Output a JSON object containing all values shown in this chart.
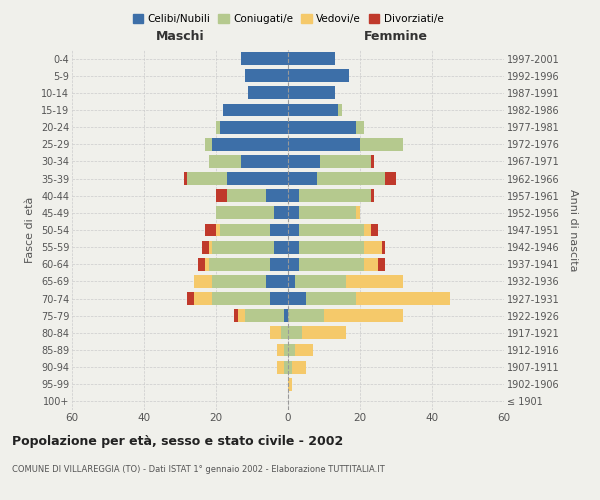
{
  "age_groups": [
    "100+",
    "95-99",
    "90-94",
    "85-89",
    "80-84",
    "75-79",
    "70-74",
    "65-69",
    "60-64",
    "55-59",
    "50-54",
    "45-49",
    "40-44",
    "35-39",
    "30-34",
    "25-29",
    "20-24",
    "15-19",
    "10-14",
    "5-9",
    "0-4"
  ],
  "birth_years": [
    "≤ 1901",
    "1902-1906",
    "1907-1911",
    "1912-1916",
    "1917-1921",
    "1922-1926",
    "1927-1931",
    "1932-1936",
    "1937-1941",
    "1942-1946",
    "1947-1951",
    "1952-1956",
    "1957-1961",
    "1962-1966",
    "1967-1971",
    "1972-1976",
    "1977-1981",
    "1982-1986",
    "1987-1991",
    "1992-1996",
    "1997-2001"
  ],
  "maschi": {
    "celibi": [
      0,
      0,
      0,
      0,
      0,
      1,
      5,
      6,
      5,
      4,
      5,
      4,
      6,
      17,
      13,
      21,
      19,
      18,
      11,
      12,
      13
    ],
    "coniugati": [
      0,
      0,
      1,
      1,
      2,
      11,
      16,
      15,
      17,
      17,
      14,
      16,
      11,
      11,
      9,
      2,
      1,
      0,
      0,
      0,
      0
    ],
    "vedovi": [
      0,
      0,
      2,
      2,
      3,
      2,
      5,
      5,
      1,
      1,
      1,
      0,
      0,
      0,
      0,
      0,
      0,
      0,
      0,
      0,
      0
    ],
    "divorziati": [
      0,
      0,
      0,
      0,
      0,
      1,
      2,
      0,
      2,
      2,
      3,
      0,
      3,
      1,
      0,
      0,
      0,
      0,
      0,
      0,
      0
    ]
  },
  "femmine": {
    "nubili": [
      0,
      0,
      0,
      0,
      0,
      0,
      5,
      2,
      3,
      3,
      3,
      3,
      3,
      8,
      9,
      20,
      19,
      14,
      13,
      17,
      13
    ],
    "coniugate": [
      0,
      0,
      1,
      2,
      4,
      10,
      14,
      14,
      18,
      18,
      18,
      16,
      20,
      19,
      14,
      12,
      2,
      1,
      0,
      0,
      0
    ],
    "vedove": [
      0,
      1,
      4,
      5,
      12,
      22,
      26,
      16,
      4,
      5,
      2,
      1,
      0,
      0,
      0,
      0,
      0,
      0,
      0,
      0,
      0
    ],
    "divorziate": [
      0,
      0,
      0,
      0,
      0,
      0,
      0,
      0,
      2,
      1,
      2,
      0,
      1,
      3,
      1,
      0,
      0,
      0,
      0,
      0,
      0
    ]
  },
  "colors": {
    "celibi": "#3d6fa8",
    "coniugati": "#b5c98e",
    "vedovi": "#f5c96a",
    "divorziati": "#c0392b"
  },
  "title": "Popolazione per età, sesso e stato civile - 2002",
  "subtitle": "COMUNE DI VILLAREGGIA (TO) - Dati ISTAT 1° gennaio 2002 - Elaborazione TUTTITALIA.IT",
  "xlabel_left": "Maschi",
  "xlabel_right": "Femmine",
  "ylabel_left": "Fasce di età",
  "ylabel_right": "Anni di nascita",
  "xlim": 60,
  "legend_labels": [
    "Celibi/Nubili",
    "Coniugati/e",
    "Vedovi/e",
    "Divorziati/e"
  ],
  "background_color": "#f0f0eb"
}
